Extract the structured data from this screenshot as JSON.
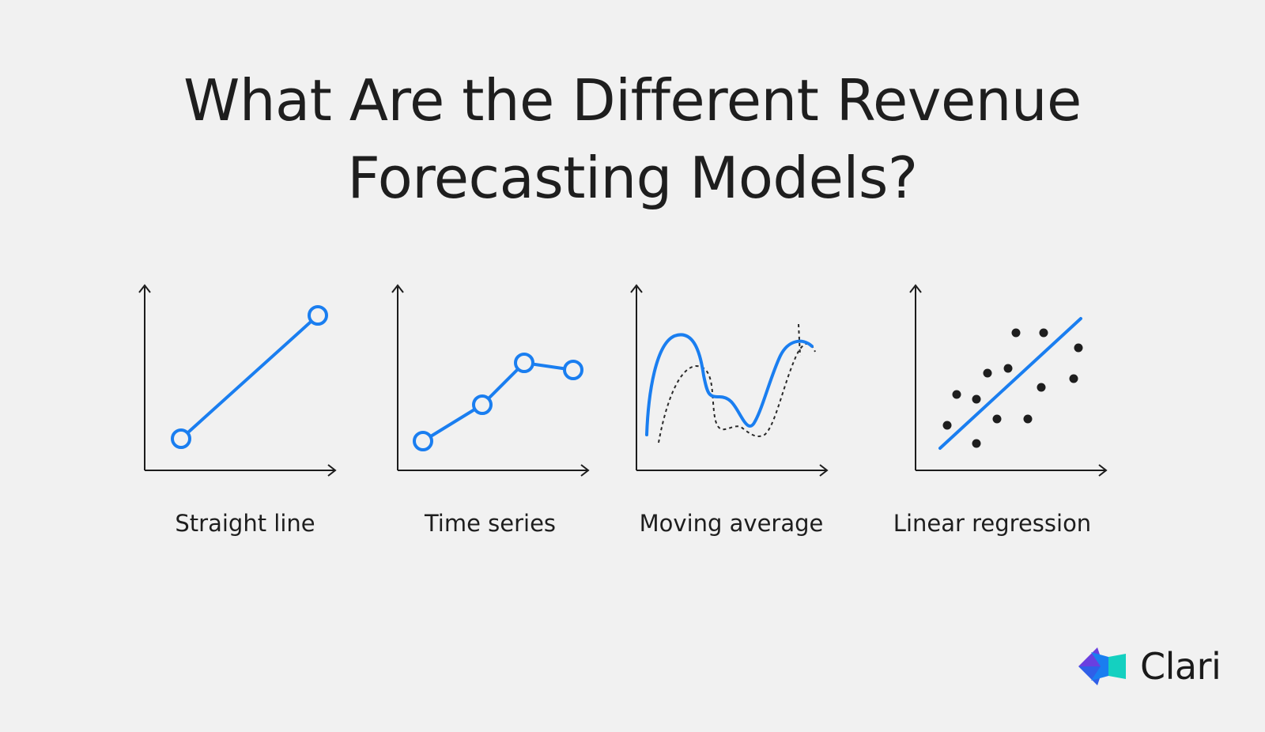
{
  "title": {
    "line1": "What Are the Different Revenue",
    "line2": "Forecasting Models?"
  },
  "models": [
    {
      "label": "Straight line",
      "icon": "straight-line-chart-icon"
    },
    {
      "label": "Time series",
      "icon": "time-series-chart-icon"
    },
    {
      "label": "Moving average",
      "icon": "moving-average-chart-icon"
    },
    {
      "label": "Linear regression",
      "icon": "linear-regression-chart-icon"
    }
  ],
  "colors": {
    "background": "#f1f1f1",
    "accent": "#1a7ef0",
    "ink": "#1e1e1e"
  },
  "brand": {
    "name": "Clari",
    "icon": "clari-logo-icon"
  }
}
